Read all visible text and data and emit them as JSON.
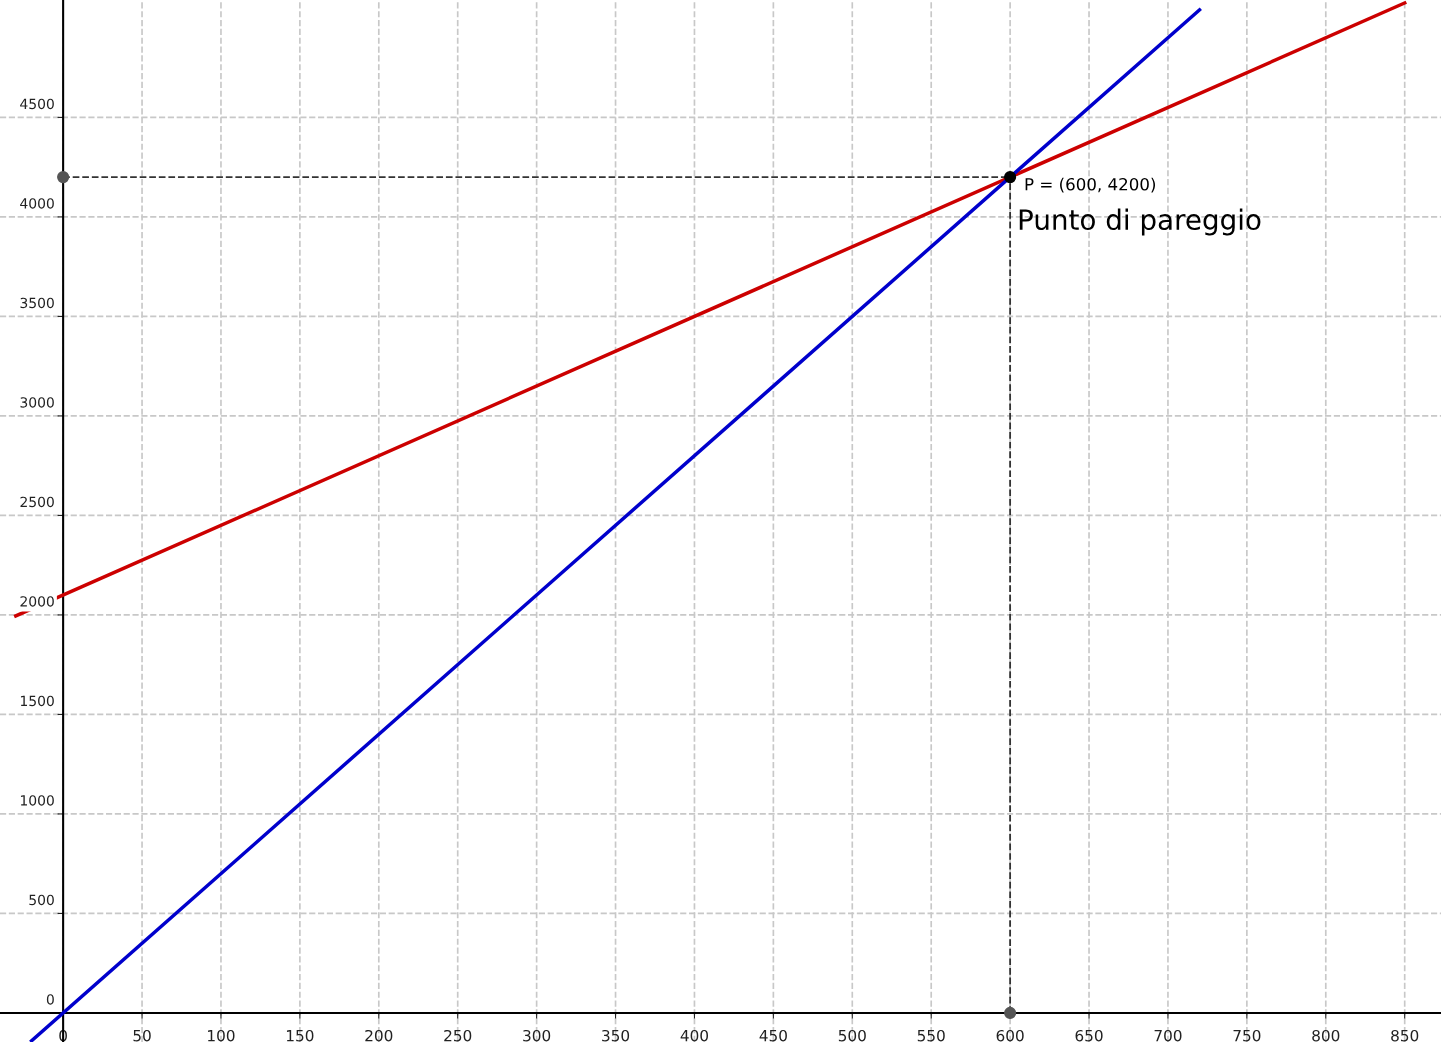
{
  "chart_data": {
    "type": "line",
    "xlim": [
      -40,
      873
    ],
    "ylim": [
      -146,
      5090
    ],
    "xticks": [
      0,
      50,
      100,
      150,
      200,
      250,
      300,
      350,
      400,
      450,
      500,
      550,
      600,
      650,
      700,
      750,
      800,
      850
    ],
    "yticks": [
      0,
      500,
      1000,
      1500,
      2000,
      2500,
      3000,
      3500,
      4000,
      4500
    ],
    "grid": true,
    "legend": false,
    "series": [
      {
        "type": "line",
        "color": "#cc0000",
        "x": [
          -30,
          850
        ],
        "values": [
          1995,
          5075
        ],
        "line_style": "solid"
      },
      {
        "type": "line",
        "color": "#0000cc",
        "x": [
          -20,
          720
        ],
        "values": [
          -140,
          5040
        ],
        "line_style": "solid"
      },
      {
        "type": "line",
        "color": "#333333",
        "x": [
          0,
          600
        ],
        "values": [
          4200,
          4200
        ],
        "line_style": "dashed"
      },
      {
        "type": "line",
        "color": "#333333",
        "x": [
          600,
          600
        ],
        "values": [
          0,
          4200
        ],
        "line_style": "dashed"
      },
      {
        "type": "scatter",
        "color": "#555555",
        "x": [
          0,
          600
        ],
        "values": [
          4200,
          0
        ],
        "marker": "circle"
      },
      {
        "type": "scatter",
        "color": "#000000",
        "x": [
          600
        ],
        "values": [
          4200
        ],
        "marker": "circle"
      }
    ],
    "annotations": [
      {
        "text": "P = (600, 4200)",
        "x": 600,
        "y": 4200
      },
      {
        "text": "Punto di pareggio",
        "x": 600,
        "y": 4200
      }
    ]
  }
}
